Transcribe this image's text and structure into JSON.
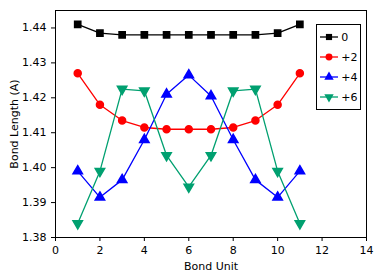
{
  "chart_data": {
    "type": "line",
    "x_label": "Bond Unit",
    "y_label": "Bond Length (A)",
    "x": [
      1,
      2,
      3,
      4,
      5,
      6,
      7,
      8,
      9,
      10,
      11
    ],
    "series": [
      {
        "name": "0",
        "color": "#000000",
        "marker": "square",
        "values": [
          1.441,
          1.4385,
          1.438,
          1.438,
          1.438,
          1.438,
          1.438,
          1.438,
          1.438,
          1.4385,
          1.441
        ]
      },
      {
        "name": "+2",
        "color": "#ff0000",
        "marker": "circle",
        "values": [
          1.427,
          1.418,
          1.4135,
          1.4115,
          1.411,
          1.411,
          1.411,
          1.4115,
          1.4135,
          1.418,
          1.427
        ]
      },
      {
        "name": "+4",
        "color": "#0000ff",
        "marker": "triangle-up",
        "values": [
          1.399,
          1.3915,
          1.3965,
          1.408,
          1.421,
          1.4265,
          1.4205,
          1.408,
          1.3965,
          1.3915,
          1.399
        ]
      },
      {
        "name": "+6",
        "color": "#00a070",
        "marker": "triangle-down",
        "values": [
          1.384,
          1.399,
          1.4225,
          1.422,
          1.4035,
          1.3945,
          1.4035,
          1.422,
          1.4225,
          1.399,
          1.384
        ]
      }
    ],
    "xlim": [
      0,
      14
    ],
    "xticks": [
      0,
      2,
      4,
      6,
      8,
      10,
      12,
      14
    ],
    "ylim": [
      1.38,
      1.445
    ],
    "yticks": [
      1.38,
      1.39,
      {
        "value": 1.4,
        "label": "1.40"
      },
      1.41,
      1.42,
      1.43,
      1.44
    ],
    "legend": "top-right",
    "grid": false
  }
}
